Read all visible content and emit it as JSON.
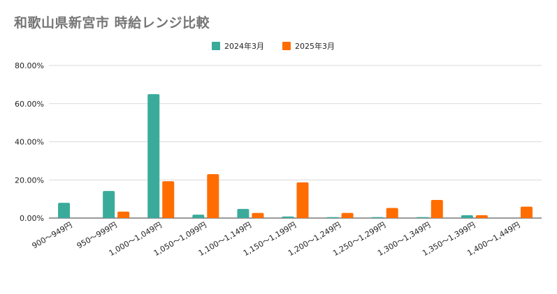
{
  "chart_data": {
    "type": "bar",
    "title": "和歌山県新宮市 時給レンジ比較",
    "categories": [
      "900～949円",
      "950～999円",
      "1,000～1,049円",
      "1,050～1,099円",
      "1,100～1,149円",
      "1,150～1,199円",
      "1,200～1,249円",
      "1,250～1,299円",
      "1,300～1,349円",
      "1,350～1,399円",
      "1,400～1,449円"
    ],
    "series": [
      {
        "name": "2024年3月",
        "color": "#3aab9b",
        "values": [
          8.0,
          14.2,
          65.0,
          1.8,
          4.8,
          0.8,
          0.5,
          0.5,
          0.5,
          1.5,
          0.0
        ]
      },
      {
        "name": "2025年3月",
        "color": "#ff6d01",
        "values": [
          0.0,
          3.4,
          19.3,
          23.0,
          2.7,
          18.7,
          2.7,
          5.3,
          9.5,
          1.5,
          6.0
        ]
      }
    ],
    "y_ticks": [
      "0.00%",
      "20.00%",
      "40.00%",
      "60.00%",
      "80.00%"
    ],
    "ylim": [
      0,
      80
    ],
    "xlabel": "",
    "ylabel": "",
    "grid": true,
    "legend_position": "top-center"
  }
}
